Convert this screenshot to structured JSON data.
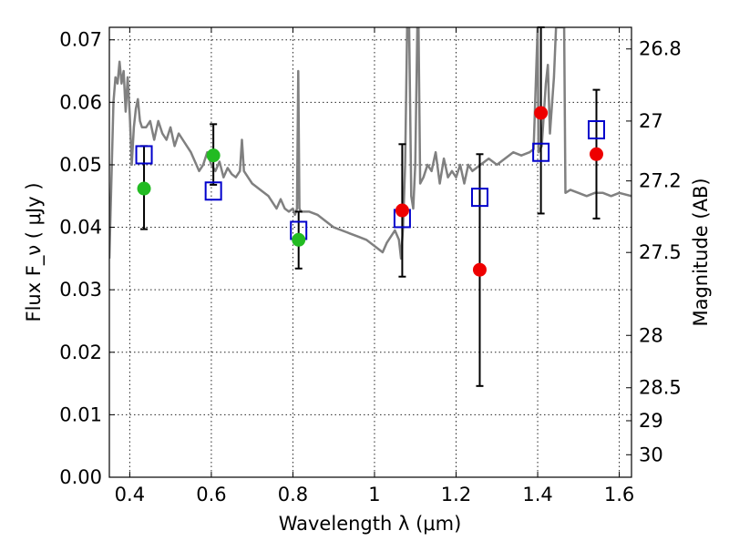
{
  "chart_data": {
    "type": "scatter",
    "xlabel": "Wavelength  λ (μm)",
    "ylabel": "Flux  F_ν  ( μJy )",
    "ylabel_right": "Magnitude (AB)",
    "xlim": [
      0.35,
      1.63
    ],
    "ylim": [
      0.0,
      0.072
    ],
    "grid": true,
    "x_ticks": [
      0.4,
      0.6,
      0.8,
      1.0,
      1.2,
      1.4,
      1.6
    ],
    "x_tick_labels": [
      "0.4",
      "0.6",
      "0.8",
      "1",
      "1.2",
      "1.4",
      "1.6"
    ],
    "y_ticks": [
      0.0,
      0.01,
      0.02,
      0.03,
      0.04,
      0.05,
      0.06,
      0.07
    ],
    "y_tick_labels": [
      "0.00",
      "0.01",
      "0.02",
      "0.03",
      "0.04",
      "0.05",
      "0.06",
      "0.07"
    ],
    "right_ticks": [
      {
        "label": "26.8",
        "flux": 0.06854
      },
      {
        "label": "27",
        "flux": 0.057
      },
      {
        "label": "27.2",
        "flux": 0.04742
      },
      {
        "label": "27.5",
        "flux": 0.03597
      },
      {
        "label": "28",
        "flux": 0.0227
      },
      {
        "label": "28.5",
        "flux": 0.01432
      },
      {
        "label": "29",
        "flux": 0.00904
      },
      {
        "label": "30",
        "flux": 0.0036
      }
    ],
    "model_sed": {
      "color": "#808080",
      "points": [
        [
          0.35,
          0.035
        ],
        [
          0.36,
          0.06
        ],
        [
          0.365,
          0.064
        ],
        [
          0.37,
          0.063
        ],
        [
          0.375,
          0.0665
        ],
        [
          0.38,
          0.063
        ],
        [
          0.385,
          0.065
        ],
        [
          0.39,
          0.0585
        ],
        [
          0.395,
          0.064
        ],
        [
          0.4,
          0.058
        ],
        [
          0.405,
          0.05
        ],
        [
          0.41,
          0.056
        ],
        [
          0.415,
          0.059
        ],
        [
          0.42,
          0.0605
        ],
        [
          0.425,
          0.057
        ],
        [
          0.43,
          0.056
        ],
        [
          0.44,
          0.056
        ],
        [
          0.45,
          0.057
        ],
        [
          0.46,
          0.054
        ],
        [
          0.47,
          0.057
        ],
        [
          0.48,
          0.055
        ],
        [
          0.49,
          0.054
        ],
        [
          0.5,
          0.056
        ],
        [
          0.51,
          0.053
        ],
        [
          0.52,
          0.055
        ],
        [
          0.53,
          0.054
        ],
        [
          0.54,
          0.053
        ],
        [
          0.55,
          0.052
        ],
        [
          0.56,
          0.0505
        ],
        [
          0.57,
          0.049
        ],
        [
          0.58,
          0.05
        ],
        [
          0.59,
          0.052
        ],
        [
          0.6,
          0.05
        ],
        [
          0.61,
          0.049
        ],
        [
          0.62,
          0.0505
        ],
        [
          0.63,
          0.048
        ],
        [
          0.64,
          0.0495
        ],
        [
          0.65,
          0.0485
        ],
        [
          0.66,
          0.048
        ],
        [
          0.67,
          0.049
        ],
        [
          0.675,
          0.054
        ],
        [
          0.68,
          0.049
        ],
        [
          0.69,
          0.048
        ],
        [
          0.7,
          0.047
        ],
        [
          0.72,
          0.046
        ],
        [
          0.74,
          0.045
        ],
        [
          0.76,
          0.043
        ],
        [
          0.77,
          0.0445
        ],
        [
          0.78,
          0.043
        ],
        [
          0.79,
          0.0425
        ],
        [
          0.8,
          0.043
        ],
        [
          0.805,
          0.042
        ],
        [
          0.81,
          0.043
        ],
        [
          0.813,
          0.065
        ],
        [
          0.816,
          0.043
        ],
        [
          0.82,
          0.0425
        ],
        [
          0.84,
          0.0425
        ],
        [
          0.86,
          0.042
        ],
        [
          0.88,
          0.041
        ],
        [
          0.9,
          0.04
        ],
        [
          0.92,
          0.0395
        ],
        [
          0.94,
          0.039
        ],
        [
          0.96,
          0.0385
        ],
        [
          0.98,
          0.038
        ],
        [
          1.0,
          0.037
        ],
        [
          1.01,
          0.0365
        ],
        [
          1.02,
          0.036
        ],
        [
          1.03,
          0.0375
        ],
        [
          1.04,
          0.0385
        ],
        [
          1.05,
          0.0395
        ],
        [
          1.06,
          0.038
        ],
        [
          1.065,
          0.035
        ],
        [
          1.07,
          0.04
        ],
        [
          1.075,
          0.05
        ],
        [
          1.08,
          0.072
        ],
        [
          1.085,
          0.072
        ],
        [
          1.09,
          0.045
        ],
        [
          1.095,
          0.043
        ],
        [
          1.1,
          0.05
        ],
        [
          1.105,
          0.072
        ],
        [
          1.108,
          0.072
        ],
        [
          1.112,
          0.047
        ],
        [
          1.12,
          0.048
        ],
        [
          1.13,
          0.05
        ],
        [
          1.14,
          0.049
        ],
        [
          1.15,
          0.052
        ],
        [
          1.16,
          0.047
        ],
        [
          1.17,
          0.051
        ],
        [
          1.18,
          0.048
        ],
        [
          1.19,
          0.049
        ],
        [
          1.2,
          0.048
        ],
        [
          1.21,
          0.05
        ],
        [
          1.22,
          0.047
        ],
        [
          1.23,
          0.05
        ],
        [
          1.24,
          0.049
        ],
        [
          1.26,
          0.05
        ],
        [
          1.28,
          0.051
        ],
        [
          1.3,
          0.05
        ],
        [
          1.32,
          0.051
        ],
        [
          1.34,
          0.052
        ],
        [
          1.36,
          0.0515
        ],
        [
          1.38,
          0.052
        ],
        [
          1.39,
          0.0525
        ],
        [
          1.4,
          0.072
        ],
        [
          1.402,
          0.052
        ],
        [
          1.41,
          0.053
        ],
        [
          1.42,
          0.063
        ],
        [
          1.425,
          0.066
        ],
        [
          1.43,
          0.055
        ],
        [
          1.44,
          0.064
        ],
        [
          1.445,
          0.072
        ],
        [
          1.46,
          0.072
        ],
        [
          1.465,
          0.072
        ],
        [
          1.468,
          0.0455
        ],
        [
          1.48,
          0.046
        ],
        [
          1.5,
          0.0455
        ],
        [
          1.52,
          0.045
        ],
        [
          1.54,
          0.0455
        ],
        [
          1.56,
          0.0455
        ],
        [
          1.58,
          0.045
        ],
        [
          1.6,
          0.0455
        ],
        [
          1.63,
          0.045
        ]
      ]
    },
    "series": [
      {
        "marker": "open-square",
        "color": "#0000cc",
        "points": [
          {
            "x": 0.435,
            "y": 0.0516
          },
          {
            "x": 0.605,
            "y": 0.0458
          },
          {
            "x": 0.814,
            "y": 0.0395
          },
          {
            "x": 1.068,
            "y": 0.0414
          },
          {
            "x": 1.258,
            "y": 0.0448
          },
          {
            "x": 1.408,
            "y": 0.052
          },
          {
            "x": 1.544,
            "y": 0.0556
          }
        ]
      },
      {
        "marker": "filled-circle",
        "color": "#22bb22",
        "points": [
          {
            "x": 0.435,
            "y": 0.0462,
            "yerr_lo": 0.0397,
            "yerr_hi": 0.053
          },
          {
            "x": 0.605,
            "y": 0.0515,
            "yerr_lo": 0.0468,
            "yerr_hi": 0.0565
          },
          {
            "x": 0.814,
            "y": 0.038,
            "yerr_lo": 0.0334,
            "yerr_hi": 0.0425
          }
        ]
      },
      {
        "marker": "filled-circle",
        "color": "#ee0000",
        "points": [
          {
            "x": 1.068,
            "y": 0.0427,
            "yerr_lo": 0.0321,
            "yerr_hi": 0.0533
          },
          {
            "x": 1.258,
            "y": 0.0332,
            "yerr_lo": 0.0146,
            "yerr_hi": 0.0517
          },
          {
            "x": 1.408,
            "y": 0.0583,
            "yerr_lo": 0.0422,
            "yerr_hi": 0.072
          },
          {
            "x": 1.544,
            "y": 0.0517,
            "yerr_lo": 0.0414,
            "yerr_hi": 0.062
          }
        ]
      }
    ]
  }
}
